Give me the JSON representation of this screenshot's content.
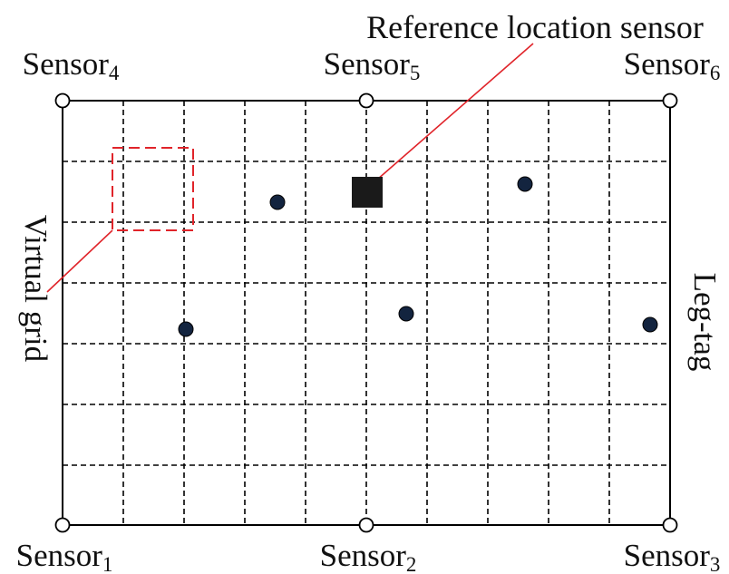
{
  "title": "Reference location sensor",
  "sensors": [
    {
      "id": "sensor-1",
      "name": "Sensor",
      "subscript": "1"
    },
    {
      "id": "sensor-2",
      "name": "Sensor",
      "subscript": "2"
    },
    {
      "id": "sensor-3",
      "name": "Sensor",
      "subscript": "3"
    },
    {
      "id": "sensor-4",
      "name": "Sensor",
      "subscript": "4"
    },
    {
      "id": "sensor-5",
      "name": "Sensor",
      "subscript": "5"
    },
    {
      "id": "sensor-6",
      "name": "Sensor",
      "subscript": "6"
    }
  ],
  "labels": {
    "virtual_grid": "Virtual grid",
    "leg_tag": "Leg-tag"
  },
  "colors": {
    "outline": "#000000",
    "grid": "#000000",
    "annotation": "#e0242a",
    "tag": "#13243f",
    "reference": "#1a1a1a"
  }
}
